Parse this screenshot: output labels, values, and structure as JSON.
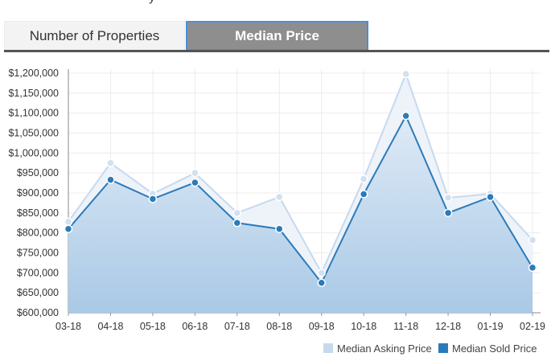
{
  "tabs": [
    {
      "label": "Number of Properties",
      "active": false
    },
    {
      "label": "Median Price",
      "active": true
    }
  ],
  "chart_data": {
    "type": "area",
    "categories": [
      "03-18",
      "04-18",
      "05-18",
      "06-18",
      "07-18",
      "08-18",
      "09-18",
      "10-18",
      "11-18",
      "12-18",
      "01-19",
      "02-19"
    ],
    "ylim": [
      600000,
      1200000
    ],
    "yticks": [
      "$600,000",
      "$650,000",
      "$700,000",
      "$750,000",
      "$800,000",
      "$850,000",
      "$900,000",
      "$950,000",
      "$1,000,000",
      "$1,050,000",
      "$1,100,000",
      "$1,150,000",
      "$1,200,000"
    ],
    "grid": true,
    "legend_position": "bottom-right",
    "series": [
      {
        "name": "Median Asking Price",
        "color": "#c6d9ee",
        "values": [
          828000,
          975000,
          898000,
          950000,
          850000,
          890000,
          700000,
          935000,
          1198000,
          888000,
          898000,
          782000
        ]
      },
      {
        "name": "Median Sold Price",
        "color": "#2b7bba",
        "values": [
          810000,
          933000,
          885000,
          926000,
          825000,
          810000,
          675000,
          897000,
          1093000,
          850000,
          890000,
          713000
        ]
      }
    ]
  }
}
